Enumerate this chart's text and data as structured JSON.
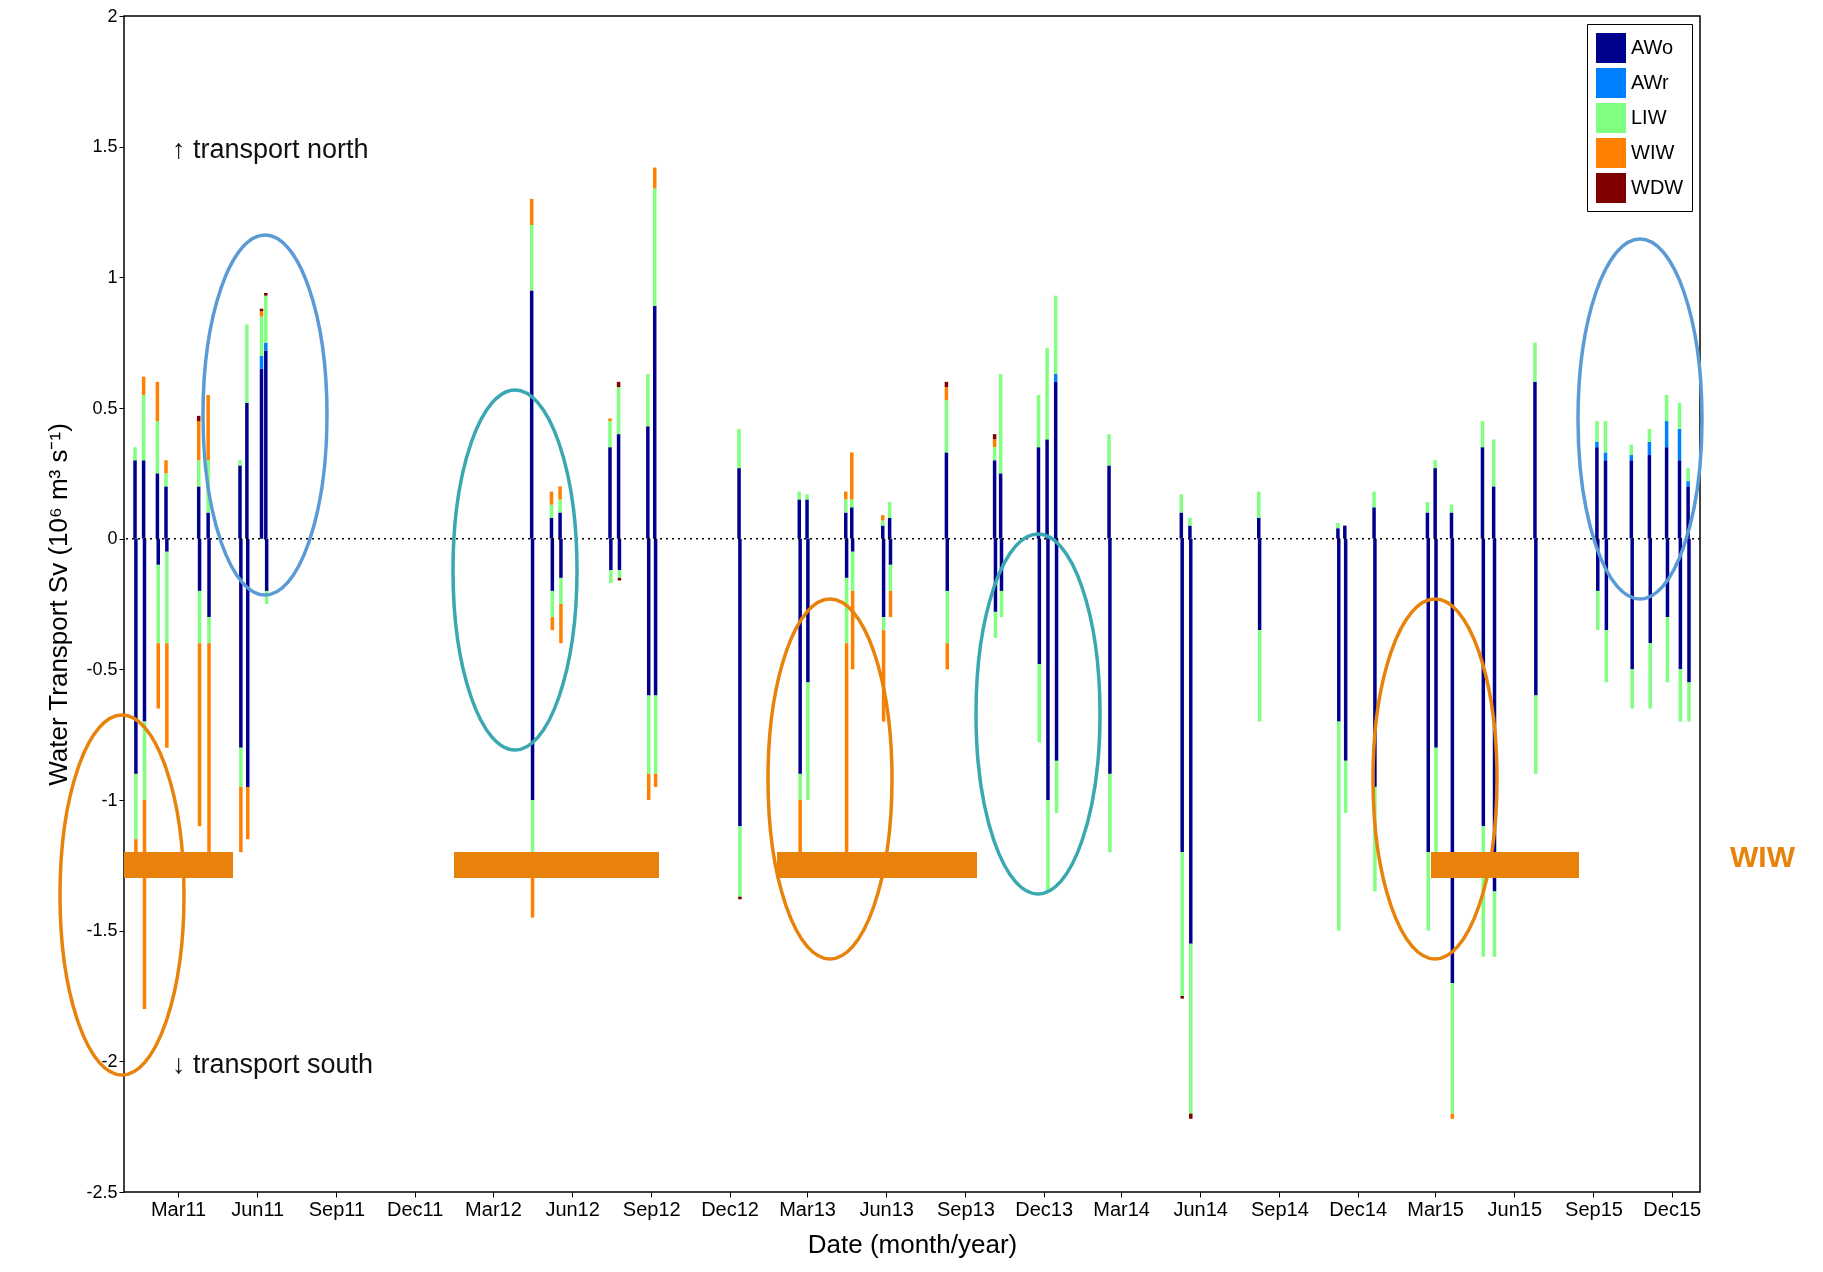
{
  "chart_data": {
    "type": "bar",
    "stacked": true,
    "xlabel": "Date (month/year)",
    "ylabel": "Water Transport Sv (10⁶ m³ s⁻¹)",
    "legend": "top right",
    "xlim": [
      "2011-01-03",
      "2015-12-28"
    ],
    "ylim": [
      -2.5,
      2
    ],
    "yticks": [
      -2.5,
      -2,
      -1.5,
      -1,
      -0.5,
      0,
      0.5,
      1,
      1.5,
      2
    ],
    "xticks": [
      {
        "value": "2011-03-01",
        "label": "Mar11"
      },
      {
        "value": "2011-06-01",
        "label": "Jun11"
      },
      {
        "value": "2011-09-01",
        "label": "Sep11"
      },
      {
        "value": "2011-12-01",
        "label": "Dec11"
      },
      {
        "value": "2012-03-01",
        "label": "Mar12"
      },
      {
        "value": "2012-06-01",
        "label": "Jun12"
      },
      {
        "value": "2012-09-01",
        "label": "Sep12"
      },
      {
        "value": "2012-12-01",
        "label": "Dec12"
      },
      {
        "value": "2013-03-01",
        "label": "Mar13"
      },
      {
        "value": "2013-06-01",
        "label": "Jun13"
      },
      {
        "value": "2013-09-01",
        "label": "Sep13"
      },
      {
        "value": "2013-12-01",
        "label": "Dec13"
      },
      {
        "value": "2014-03-01",
        "label": "Mar14"
      },
      {
        "value": "2014-06-01",
        "label": "Jun14"
      },
      {
        "value": "2014-09-01",
        "label": "Sep14"
      },
      {
        "value": "2014-12-01",
        "label": "Dec14"
      },
      {
        "value": "2015-03-01",
        "label": "Mar15"
      },
      {
        "value": "2015-06-01",
        "label": "Jun15"
      },
      {
        "value": "2015-09-01",
        "label": "Sep15"
      },
      {
        "value": "2015-12-01",
        "label": "Dec15"
      }
    ],
    "x": [
      "2011-01-10",
      "2011-01-11",
      "2011-01-20",
      "2011-01-21",
      "2011-02-05",
      "2011-02-06",
      "2011-02-15",
      "2011-02-16",
      "2011-03-25",
      "2011-03-26",
      "2011-04-05",
      "2011-04-06",
      "2011-05-12",
      "2011-05-13",
      "2011-05-20",
      "2011-05-21",
      "2011-06-06",
      "2011-06-11",
      "2011-06-12",
      "2012-04-15",
      "2012-04-16",
      "2012-05-08",
      "2012-05-09",
      "2012-05-18",
      "2012-05-19",
      "2012-07-15",
      "2012-07-16",
      "2012-07-25",
      "2012-07-26",
      "2012-08-28",
      "2012-08-29",
      "2012-09-05",
      "2012-09-06",
      "2012-12-12",
      "2012-12-13",
      "2013-02-20",
      "2013-02-21",
      "2013-03-01",
      "2013-03-02",
      "2013-04-15",
      "2013-04-16",
      "2013-04-22",
      "2013-04-23",
      "2013-05-28",
      "2013-05-29",
      "2013-06-05",
      "2013-06-06",
      "2013-08-10",
      "2013-08-11",
      "2013-10-05",
      "2013-10-06",
      "2013-10-12",
      "2013-10-13",
      "2013-11-25",
      "2013-11-26",
      "2013-12-05",
      "2013-12-06",
      "2013-12-15",
      "2013-12-16",
      "2014-02-15",
      "2014-02-16",
      "2014-05-10",
      "2014-05-11",
      "2014-05-20",
      "2014-05-21",
      "2014-08-08",
      "2014-08-09",
      "2014-11-08",
      "2014-11-09",
      "2014-11-16",
      "2014-11-17",
      "2014-12-20",
      "2014-12-21",
      "2015-02-20",
      "2015-02-21",
      "2015-03-01",
      "2015-03-02",
      "2015-03-20",
      "2015-03-21",
      "2015-04-25",
      "2015-04-26",
      "2015-05-08",
      "2015-05-09",
      "2015-06-25",
      "2015-06-26",
      "2015-09-05",
      "2015-09-06",
      "2015-09-15",
      "2015-09-16",
      "2015-10-15",
      "2015-10-16",
      "2015-11-05",
      "2015-11-06",
      "2015-11-25",
      "2015-11-26",
      "2015-12-10",
      "2015-12-11",
      "2015-12-20",
      "2015-12-21"
    ],
    "series": [
      {
        "name": "AWo",
        "color": "#00008f",
        "values": [
          0.3,
          -0.9,
          0.3,
          -0.7,
          0.25,
          -0.1,
          0.2,
          -0.05,
          0.2,
          -0.2,
          0.1,
          -0.3,
          0.28,
          -0.8,
          0.52,
          -0.95,
          0.65,
          0.72,
          -0.2,
          0.95,
          -1.0,
          0.08,
          -0.2,
          0.1,
          -0.15,
          0.35,
          -0.12,
          0.4,
          -0.12,
          0.43,
          -0.6,
          0.89,
          -0.6,
          0.27,
          -1.1,
          0.15,
          -0.9,
          0.15,
          -0.55,
          0.1,
          -0.15,
          0.12,
          -0.05,
          0.05,
          -0.3,
          0.08,
          -0.1,
          0.33,
          -0.2,
          0.3,
          -0.28,
          0.25,
          -0.2,
          0.35,
          -0.48,
          0.38,
          -1.0,
          0.6,
          -0.85,
          0.28,
          -0.9,
          0.1,
          -1.2,
          0.05,
          -1.55,
          0.08,
          -0.35,
          0.04,
          -0.7,
          0.05,
          -0.85,
          0.12,
          -0.95,
          0.1,
          -1.2,
          0.27,
          -0.8,
          0.1,
          -1.7,
          0.35,
          -1.1,
          0.2,
          -1.35,
          0.6,
          -0.6,
          0.35,
          -0.2,
          0.3,
          -0.35,
          0.3,
          -0.5,
          0.32,
          -0.4,
          0.35,
          -0.3,
          0.3,
          -0.5,
          0.2,
          -0.55
        ]
      },
      {
        "name": "AWr",
        "color": "#0080ff",
        "values": [
          null,
          null,
          null,
          null,
          null,
          null,
          null,
          null,
          null,
          null,
          null,
          null,
          null,
          null,
          null,
          null,
          0.05,
          0.03,
          null,
          null,
          null,
          null,
          null,
          null,
          null,
          null,
          null,
          null,
          null,
          null,
          null,
          null,
          null,
          null,
          null,
          null,
          null,
          null,
          null,
          null,
          null,
          null,
          null,
          null,
          null,
          null,
          null,
          null,
          null,
          null,
          null,
          null,
          null,
          null,
          null,
          null,
          null,
          0.03,
          null,
          null,
          null,
          null,
          null,
          null,
          null,
          null,
          null,
          null,
          null,
          null,
          null,
          null,
          null,
          null,
          null,
          null,
          null,
          null,
          null,
          null,
          null,
          null,
          null,
          null,
          null,
          0.02,
          null,
          0.03,
          null,
          0.02,
          null,
          0.05,
          null,
          0.1,
          null,
          0.12,
          null,
          0.02,
          null
        ]
      },
      {
        "name": "LIW",
        "color": "#80ff80",
        "values": [
          0.05,
          -0.25,
          0.25,
          -0.3,
          0.2,
          -0.3,
          0.05,
          -0.35,
          0.1,
          -0.2,
          0.2,
          -0.1,
          0.02,
          -0.15,
          0.3,
          null,
          0.15,
          0.18,
          -0.05,
          0.25,
          -0.2,
          0.05,
          -0.1,
          0.05,
          -0.1,
          0.1,
          -0.05,
          0.18,
          -0.03,
          0.2,
          -0.3,
          0.45,
          -0.3,
          0.15,
          -0.27,
          0.03,
          -0.1,
          0.02,
          -0.45,
          0.05,
          -0.25,
          0.03,
          -0.15,
          0.02,
          -0.05,
          0.06,
          -0.1,
          0.2,
          -0.2,
          0.05,
          -0.1,
          0.38,
          -0.1,
          0.2,
          -0.3,
          0.35,
          -0.35,
          0.3,
          -0.2,
          0.12,
          -0.3,
          0.07,
          -0.55,
          0.03,
          -0.65,
          0.1,
          -0.35,
          0.02,
          -0.8,
          null,
          -0.2,
          0.06,
          -0.4,
          0.04,
          -0.3,
          0.03,
          -0.4,
          0.03,
          -0.5,
          0.1,
          -0.5,
          0.18,
          -0.25,
          0.15,
          -0.3,
          0.08,
          -0.15,
          0.12,
          -0.2,
          0.04,
          -0.15,
          0.05,
          -0.25,
          0.1,
          -0.25,
          0.1,
          -0.2,
          0.05,
          -0.15
        ]
      },
      {
        "name": "WIW",
        "color": "#ff7f00",
        "values": [
          null,
          -0.05,
          0.07,
          -0.8,
          0.15,
          -0.25,
          0.05,
          -0.4,
          0.15,
          -0.7,
          0.25,
          -0.8,
          null,
          -0.25,
          null,
          -0.2,
          0.02,
          null,
          null,
          0.1,
          -0.25,
          0.05,
          -0.05,
          0.05,
          -0.15,
          0.01,
          null,
          null,
          null,
          null,
          -0.1,
          0.08,
          -0.05,
          null,
          null,
          null,
          -0.2,
          null,
          null,
          0.03,
          -0.8,
          0.18,
          -0.3,
          0.02,
          -0.35,
          null,
          -0.1,
          0.05,
          -0.1,
          0.03,
          null,
          null,
          null,
          null,
          null,
          null,
          null,
          null,
          null,
          null,
          null,
          null,
          null,
          null,
          null,
          null,
          null,
          null,
          null,
          null,
          null,
          null,
          null,
          null,
          null,
          null,
          null,
          null,
          -0.02,
          null,
          null,
          null,
          null,
          null,
          null,
          null,
          null,
          null,
          null,
          null,
          null,
          null,
          null,
          null,
          null,
          null,
          null,
          null,
          null
        ]
      },
      {
        "name": "WDW",
        "color": "#800000",
        "values": [
          null,
          null,
          null,
          null,
          null,
          null,
          null,
          null,
          0.02,
          null,
          null,
          null,
          null,
          null,
          null,
          null,
          0.01,
          0.01,
          null,
          null,
          null,
          null,
          null,
          null,
          null,
          null,
          null,
          0.02,
          -0.01,
          null,
          null,
          null,
          null,
          null,
          -0.01,
          null,
          null,
          null,
          null,
          null,
          null,
          null,
          null,
          null,
          null,
          null,
          null,
          0.02,
          null,
          0.02,
          null,
          null,
          null,
          null,
          null,
          null,
          null,
          null,
          null,
          null,
          null,
          null,
          -0.01,
          null,
          -0.02,
          null,
          null,
          null,
          null,
          null,
          null,
          null,
          null,
          null,
          null,
          null,
          null,
          null,
          null,
          null,
          null,
          null,
          null,
          null,
          null,
          null,
          null,
          null,
          null,
          null,
          null,
          null,
          null,
          null,
          null,
          null,
          null,
          null,
          null
        ]
      }
    ],
    "ref_lines": [
      {
        "axis": "y",
        "value": 0,
        "line_style": "dotted",
        "color": "#000000"
      }
    ],
    "annotations": [
      "↑ transport north",
      "↓ transport south",
      "WIW"
    ]
  }
}
